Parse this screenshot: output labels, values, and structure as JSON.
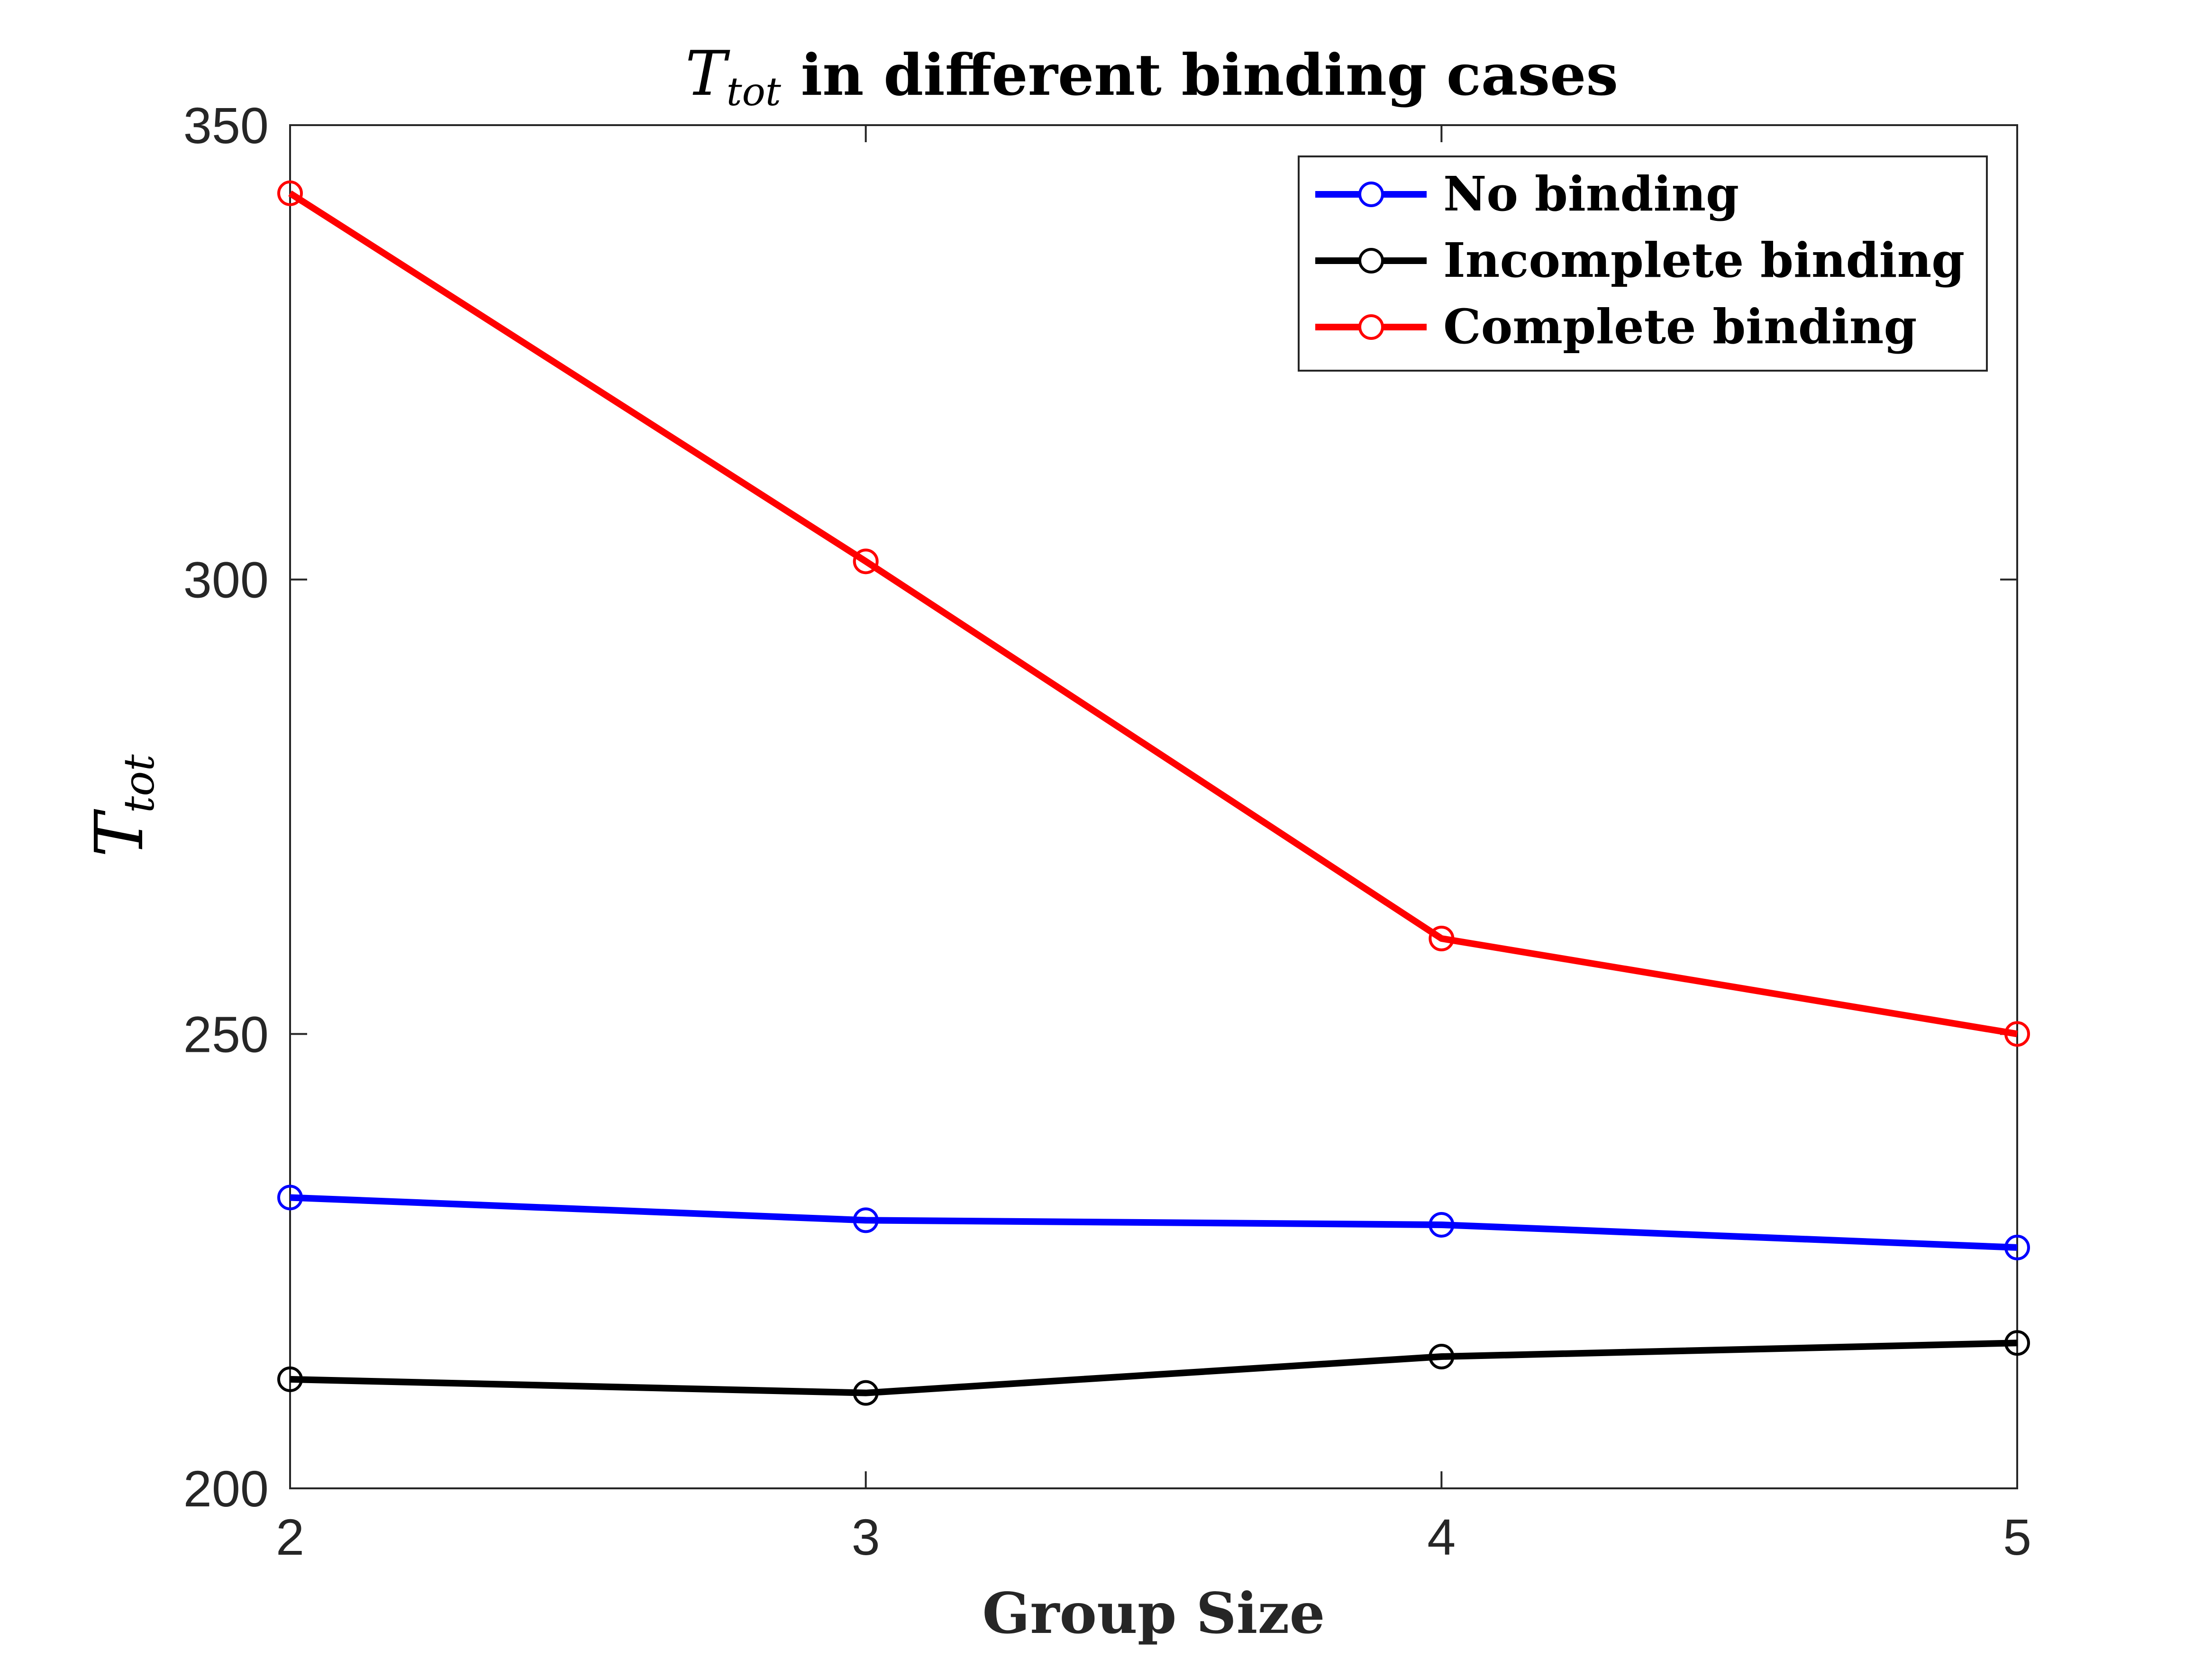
{
  "chart_data": {
    "type": "line",
    "title": {
      "symbol": "T",
      "subscript": "tot",
      "text": " in different binding cases"
    },
    "xlabel": "Group Size",
    "ylabel": {
      "symbol": "T",
      "subscript": "tot"
    },
    "categories": [
      2,
      3,
      4,
      5
    ],
    "xlim": [
      2,
      5
    ],
    "ylim": [
      200,
      350
    ],
    "xticks": [
      "2",
      "3",
      "4",
      "5"
    ],
    "yticks": [
      "200",
      "250",
      "300",
      "350"
    ],
    "grid": false,
    "legend_position": "top-right",
    "series": [
      {
        "name": "No binding",
        "color": "#0000ff",
        "values": [
          232,
          229.5,
          229,
          226.5
        ]
      },
      {
        "name": "Incomplete binding",
        "color": "#000000",
        "values": [
          212,
          210.5,
          214.5,
          216
        ]
      },
      {
        "name": "Complete binding",
        "color": "#ff0000",
        "values": [
          342.5,
          302,
          260.5,
          250
        ]
      }
    ]
  }
}
